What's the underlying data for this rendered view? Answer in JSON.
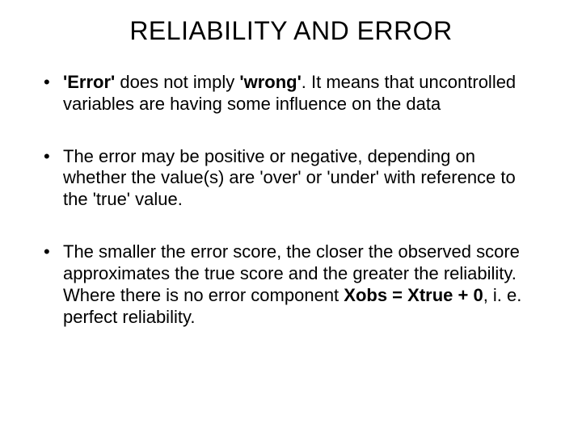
{
  "title": "RELIABILITY AND ERROR",
  "bullets": [
    {
      "runs": [
        {
          "text": "'Error' ",
          "bold": true
        },
        {
          "text": "does not imply ",
          "bold": false
        },
        {
          "text": "'wrong'",
          "bold": true
        },
        {
          "text": ". It means that uncontrolled variables are having some influence on the data",
          "bold": false
        }
      ]
    },
    {
      "runs": [
        {
          "text": "The error may be positive or negative, depending on whether the value(s) are  'over' or 'under' with reference to the 'true' value.",
          "bold": false
        }
      ]
    },
    {
      "runs": [
        {
          "text": "The smaller the error score, the closer the observed score approximates the true score and the greater the reliability.  Where there is no error component     ",
          "bold": false
        },
        {
          "text": "Xobs  =  Xtrue  +  0",
          "bold": true
        },
        {
          "text": ",  i. e. perfect reliability.",
          "bold": false
        }
      ]
    }
  ],
  "colors": {
    "background": "#ffffff",
    "text": "#000000"
  },
  "typography": {
    "title_fontsize": 32,
    "body_fontsize": 22,
    "font_family": "Arial"
  }
}
